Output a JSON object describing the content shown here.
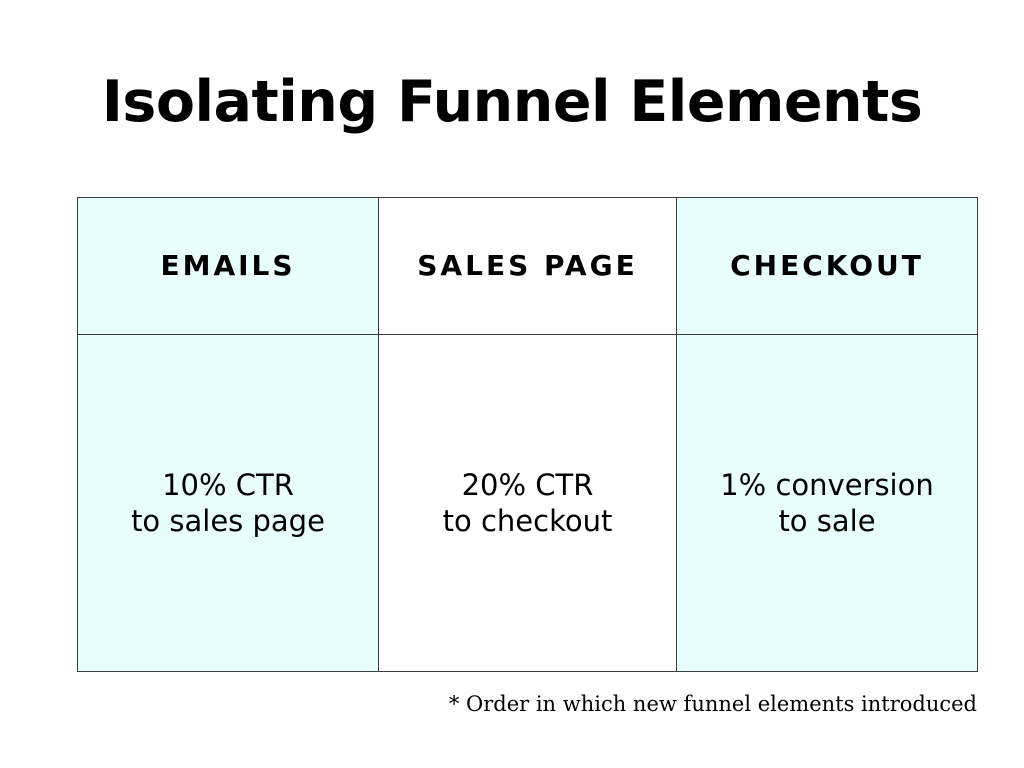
{
  "title": "Isolating Funnel Elements",
  "columns": [
    {
      "header": "EMAILS",
      "metric_line1": "10% CTR",
      "metric_line2": "to sales page",
      "tint": "#e8fdfd"
    },
    {
      "header": "SALES PAGE",
      "metric_line1": "20% CTR",
      "metric_line2": "to checkout",
      "tint": "#ffffff"
    },
    {
      "header": "CHECKOUT",
      "metric_line1": "1% conversion",
      "metric_line2": "to sale",
      "tint": "#e8fdfd"
    }
  ],
  "footnote": "* Order in which new funnel elements introduced",
  "colors": {
    "tinted_cell": "#e8fdfd",
    "border": "#3a3a3a",
    "text": "#000000"
  }
}
